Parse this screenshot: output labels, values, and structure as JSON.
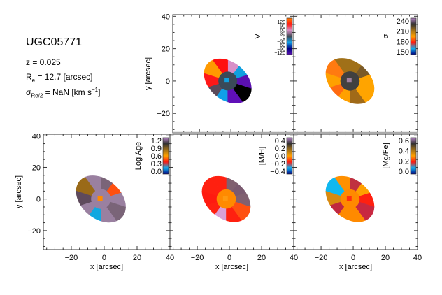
{
  "info": {
    "galaxy": "UGC05771",
    "redshift": "z = 0.025",
    "re_prefix": "R",
    "re_sub": "e",
    "re_value": " = 12.7 [arcsec]",
    "sigma_prefix": "σ",
    "sigma_sub": "Re/2",
    "sigma_value": " = NaN [km s",
    "sigma_sup": "−1",
    "sigma_close": "]"
  },
  "chart_data": [
    {
      "type": "heatmap",
      "name": "velocity",
      "colorbar_label": "V",
      "colorbar_ticks": [
        "120",
        "90",
        "60",
        "30",
        "0",
        "−30",
        "−60",
        "−90",
        "−120"
      ],
      "clim": [
        -120,
        120
      ],
      "colors": [
        "#ff7a00",
        "#ff1a10",
        "#d890c8",
        "#404850",
        "#10a0e8",
        "#000080",
        "#5a10b0"
      ],
      "sectors": [
        "#5a10b0",
        "#10a0e0",
        "#d890c8",
        "#ff1010",
        "#ff9a00",
        "#ff1818",
        "#5a4a5a",
        "#10a0e8",
        "#6010b8",
        "#000000"
      ],
      "center": "#3a4a58",
      "core": "#10a0e0",
      "xlabel": "",
      "ylabel": "y [arcsec]",
      "xlim": [
        -37,
        40
      ],
      "ylim": [
        -32,
        41
      ],
      "show_x": false,
      "show_y": true
    },
    {
      "type": "heatmap",
      "name": "sigma",
      "colorbar_label": "σ",
      "colorbar_ticks": [
        "240",
        "210",
        "180",
        "150"
      ],
      "clim": [
        135,
        250
      ],
      "colors": [
        "#b080c0",
        "#303030",
        "#a07018",
        "#ffa000",
        "#ff1a10",
        "#10b0f0",
        "#000080"
      ],
      "sectors": [
        "#ffa400",
        "#7a5a28",
        "#a07018",
        "#a07018",
        "#ff7a10",
        "#ffa000",
        "#ff6a10",
        "#ffa000",
        "#a06a18",
        "#ffa400"
      ],
      "center": "#404040",
      "core": "#a080a0",
      "xlabel": "",
      "ylabel": "",
      "xlim": [
        -37,
        40
      ],
      "ylim": [
        -32,
        41
      ],
      "show_x": false,
      "show_y": false
    },
    {
      "type": "heatmap",
      "name": "log-age",
      "colorbar_label": "Log Age",
      "colorbar_ticks": [
        "1.2",
        "0.9",
        "0.6",
        "0.3",
        "0.0"
      ],
      "clim": [
        0,
        1.25
      ],
      "colors": [
        "#b080c0",
        "#303030",
        "#a07018",
        "#ffa000",
        "#ff1a10",
        "#10b0f0",
        "#000080"
      ],
      "sectors": [
        "#9a80a0",
        "#ff5010",
        "#7a6478",
        "#9a80a0",
        "#9a6a18",
        "#5e4a5c",
        "#9a80a0",
        "#10a8e0",
        "#9a80a0",
        "#7a6478"
      ],
      "center": "#9a80a0",
      "core": "#ff8a00",
      "xlabel": "x [arcsec]",
      "ylabel": "y [arcsec]",
      "xlim": [
        -37,
        40
      ],
      "ylim": [
        -32,
        41
      ],
      "show_x": true,
      "show_y": true
    },
    {
      "type": "heatmap",
      "name": "metallicity",
      "colorbar_label": "[M/H]",
      "colorbar_ticks": [
        "0.4",
        "0.2",
        "0.0",
        "−0.2",
        "−0.4"
      ],
      "clim": [
        -0.45,
        0.45
      ],
      "colors": [
        "#b080c0",
        "#303030",
        "#a07018",
        "#ffa000",
        "#ff1a10",
        "#10b0f0",
        "#000080"
      ],
      "sectors": [
        "#806070",
        "#7a5a70",
        "#806070",
        "#ff2010",
        "#ff2010",
        "#ff1a10",
        "#ff2010",
        "#d8a0d8",
        "#ff2010",
        "#ff5010"
      ],
      "center": "#ff8a00",
      "core": "#ff9a10",
      "xlabel": "x [arcsec]",
      "ylabel": "",
      "xlim": [
        -37,
        40
      ],
      "ylim": [
        -32,
        41
      ],
      "show_x": true,
      "show_y": false
    },
    {
      "type": "heatmap",
      "name": "mg-fe",
      "colorbar_label": "[Mg/Fe]",
      "colorbar_ticks": [
        "0.6",
        "0.4",
        "0.2",
        "0.0"
      ],
      "clim": [
        -0.05,
        0.65
      ],
      "colors": [
        "#b080c0",
        "#303030",
        "#a07018",
        "#ffa000",
        "#ff1a10",
        "#10b0f0",
        "#000080"
      ],
      "sectors": [
        "#ff2010",
        "#ffa000",
        "#c03040",
        "#ff9000",
        "#10b8f0",
        "#d88a10",
        "#c02840",
        "#ff8a00",
        "#ff8a00",
        "#c82840"
      ],
      "center": "#ff8a00",
      "core": "#ff3010",
      "xlabel": "x [arcsec]",
      "ylabel": "",
      "xlim": [
        -37,
        40
      ],
      "ylim": [
        -32,
        41
      ],
      "show_x": true,
      "show_y": false
    }
  ]
}
